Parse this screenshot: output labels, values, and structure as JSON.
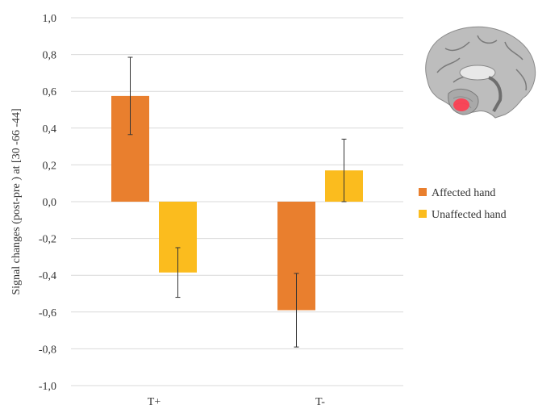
{
  "chart_data": {
    "type": "bar",
    "ylabel": "Signal changes (post-pre ) at [30 -66 -44]",
    "xlabel": "",
    "ylim": [
      -1.0,
      1.0
    ],
    "yticks": [
      "1,0",
      "0,8",
      "0,6",
      "0,4",
      "0,2",
      "0,0",
      "-0,2",
      "-0,4",
      "-0,6",
      "-0,8",
      "-1,0"
    ],
    "ytick_values": [
      1.0,
      0.8,
      0.6,
      0.4,
      0.2,
      0.0,
      -0.2,
      -0.4,
      -0.6,
      -0.8,
      -1.0
    ],
    "categories": [
      "T+",
      "T-"
    ],
    "grid": true,
    "legend_position": "right",
    "series": [
      {
        "name": "Affected hand",
        "color": "#e97f2e",
        "values": [
          0.575,
          -0.59
        ],
        "error": [
          0.21,
          0.2
        ]
      },
      {
        "name": "Unaffected hand",
        "color": "#fbbc1e",
        "values": [
          -0.385,
          0.17
        ],
        "error": [
          0.135,
          0.17
        ]
      }
    ]
  },
  "inset": {
    "icon": "brain-mri-sagittal-icon",
    "highlight_color": "#ff3b4f"
  }
}
